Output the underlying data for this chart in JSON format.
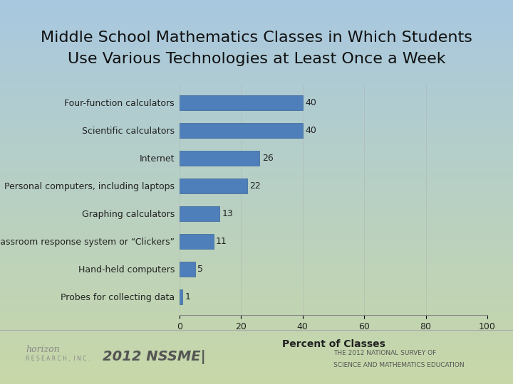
{
  "title_line1": "Middle School Mathematics Classes in Which Students",
  "title_line2": "Use Various Technologies at Least Once a Week",
  "categories": [
    "Four-function calculators",
    "Scientific calculators",
    "Internet",
    "Personal computers, including laptops",
    "Graphing calculators",
    "Classroom response system or “Clickers”",
    "Hand-held computers",
    "Probes for collecting data"
  ],
  "values": [
    40,
    40,
    26,
    22,
    13,
    11,
    5,
    1
  ],
  "bar_color": "#4f7fba",
  "bar_edge_color": "#3a6699",
  "xlabel": "Percent of Classes",
  "xlim": [
    0,
    100
  ],
  "xticks": [
    0,
    20,
    40,
    60,
    80,
    100
  ],
  "background_top": "#a8c8e0",
  "background_bottom": "#c8d8a0",
  "footer_left": "2012 NSSME|",
  "footer_right_line1": "THE 2012 NATIONAL SURVEY OF",
  "footer_right_line2": "SCIENCE AND MATHEMATICS EDUCATION",
  "title_fontsize": 16,
  "label_fontsize": 9,
  "value_fontsize": 9,
  "xlabel_fontsize": 10
}
